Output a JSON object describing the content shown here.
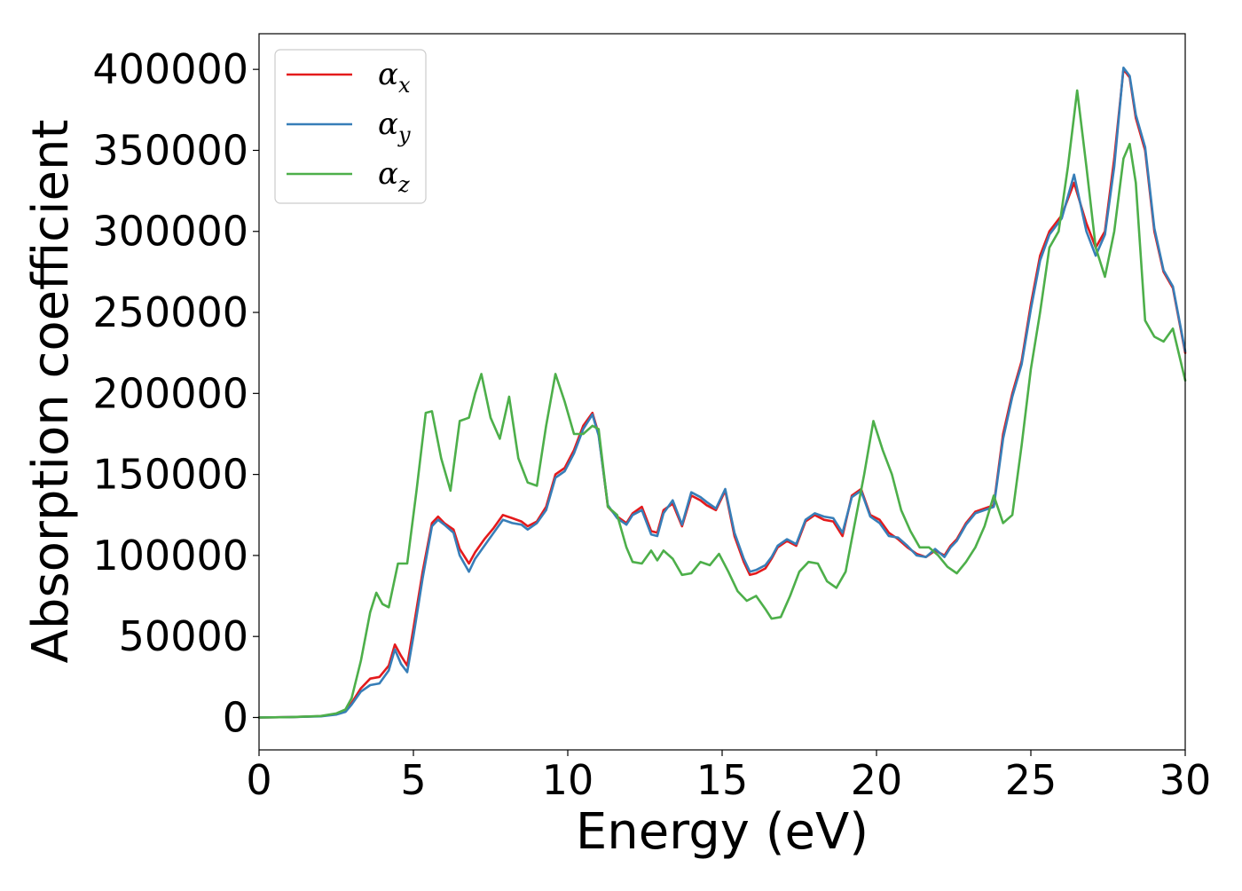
{
  "chart_data": {
    "type": "line",
    "title": "",
    "xlabel": "Energy (eV)",
    "ylabel": "Absorption coefficient",
    "xlim": [
      0,
      30
    ],
    "ylim": [
      -20000,
      422000
    ],
    "xticks": [
      0,
      5,
      10,
      15,
      20,
      25,
      30
    ],
    "xtick_labels": [
      "0",
      "5",
      "10",
      "15",
      "20",
      "25",
      "30"
    ],
    "yticks": [
      0,
      50000,
      100000,
      150000,
      200000,
      250000,
      300000,
      350000,
      400000
    ],
    "ytick_labels": [
      "0",
      "50000",
      "100000",
      "150000",
      "200000",
      "250000",
      "300000",
      "350000",
      "400000"
    ],
    "grid": false,
    "legend_position": "top-left",
    "series": [
      {
        "name": "αx",
        "label_base": "α",
        "label_sub": "x",
        "color": "#e41a1c",
        "x": [
          0,
          1,
          2,
          2.5,
          2.8,
          3.0,
          3.3,
          3.6,
          3.9,
          4.2,
          4.4,
          4.6,
          4.8,
          5.0,
          5.3,
          5.6,
          5.8,
          6.0,
          6.3,
          6.5,
          6.8,
          7.0,
          7.3,
          7.6,
          7.9,
          8.2,
          8.5,
          8.7,
          9.0,
          9.3,
          9.6,
          9.9,
          10.2,
          10.5,
          10.8,
          11.0,
          11.3,
          11.6,
          11.9,
          12.1,
          12.4,
          12.7,
          12.9,
          13.1,
          13.4,
          13.7,
          14.0,
          14.3,
          14.5,
          14.8,
          15.1,
          15.4,
          15.7,
          15.9,
          16.1,
          16.4,
          16.6,
          16.8,
          17.1,
          17.4,
          17.7,
          18.0,
          18.3,
          18.6,
          18.9,
          19.2,
          19.5,
          19.8,
          20.1,
          20.4,
          20.7,
          21.0,
          21.3,
          21.6,
          21.9,
          22.2,
          22.4,
          22.6,
          22.9,
          23.2,
          23.5,
          23.8,
          24.1,
          24.4,
          24.7,
          25.0,
          25.3,
          25.6,
          26.0,
          26.4,
          26.8,
          27.1,
          27.4,
          27.7,
          28.0,
          28.2,
          28.4,
          28.7,
          29.0,
          29.3,
          29.6,
          30.0
        ],
        "y": [
          0,
          200,
          800,
          2000,
          4000,
          9000,
          18000,
          24000,
          25000,
          32000,
          45000,
          38000,
          32000,
          55000,
          90000,
          120000,
          124000,
          120000,
          116000,
          104000,
          95000,
          102000,
          110000,
          117000,
          125000,
          123000,
          121000,
          118000,
          121000,
          130000,
          150000,
          154000,
          165000,
          180000,
          188000,
          175000,
          130000,
          124000,
          120000,
          126000,
          130000,
          115000,
          114000,
          128000,
          132000,
          118000,
          137000,
          134000,
          131000,
          128000,
          140000,
          112000,
          96000,
          88000,
          89000,
          92000,
          98000,
          105000,
          109000,
          106000,
          121000,
          125000,
          122000,
          121000,
          112000,
          137000,
          141000,
          125000,
          122000,
          114000,
          110000,
          105000,
          101000,
          99000,
          103000,
          100000,
          106000,
          110000,
          120000,
          127000,
          129000,
          131000,
          175000,
          200000,
          220000,
          255000,
          285000,
          300000,
          310000,
          330000,
          305000,
          290000,
          300000,
          345000,
          400000,
          395000,
          370000,
          350000,
          300000,
          275000,
          265000,
          225000
        ]
      },
      {
        "name": "αy",
        "label_base": "α",
        "label_sub": "y",
        "color": "#377eb8",
        "x": [
          0,
          1,
          2,
          2.5,
          2.8,
          3.0,
          3.3,
          3.6,
          3.9,
          4.2,
          4.4,
          4.6,
          4.8,
          5.0,
          5.3,
          5.6,
          5.8,
          6.0,
          6.3,
          6.5,
          6.8,
          7.0,
          7.3,
          7.6,
          7.9,
          8.2,
          8.5,
          8.7,
          9.0,
          9.3,
          9.6,
          9.9,
          10.2,
          10.5,
          10.8,
          11.0,
          11.3,
          11.6,
          11.9,
          12.1,
          12.4,
          12.7,
          12.9,
          13.1,
          13.4,
          13.7,
          14.0,
          14.3,
          14.5,
          14.8,
          15.1,
          15.4,
          15.7,
          15.9,
          16.1,
          16.4,
          16.6,
          16.8,
          17.1,
          17.4,
          17.7,
          18.0,
          18.3,
          18.6,
          18.9,
          19.2,
          19.5,
          19.8,
          20.1,
          20.4,
          20.7,
          21.0,
          21.3,
          21.6,
          21.9,
          22.2,
          22.4,
          22.6,
          22.9,
          23.2,
          23.5,
          23.8,
          24.1,
          24.4,
          24.7,
          25.0,
          25.3,
          25.6,
          26.0,
          26.4,
          26.8,
          27.1,
          27.4,
          27.7,
          28.0,
          28.2,
          28.4,
          28.7,
          29.0,
          29.3,
          29.6,
          30.0
        ],
        "y": [
          0,
          200,
          700,
          1800,
          3500,
          8000,
          16000,
          20000,
          21000,
          29000,
          42000,
          33000,
          28000,
          50000,
          86000,
          118000,
          122000,
          119000,
          114000,
          100000,
          90000,
          98000,
          106000,
          114000,
          122000,
          120000,
          119000,
          116000,
          120000,
          128000,
          148000,
          152000,
          163000,
          178000,
          187000,
          174000,
          131000,
          123000,
          119000,
          125000,
          128000,
          113000,
          112000,
          126000,
          134000,
          119000,
          139000,
          136000,
          133000,
          129000,
          141000,
          114000,
          98000,
          90000,
          91000,
          94000,
          99000,
          106000,
          110000,
          107000,
          122000,
          126000,
          124000,
          123000,
          114000,
          136000,
          140000,
          124000,
          120000,
          112000,
          111000,
          106000,
          100000,
          99000,
          104000,
          99000,
          105000,
          109000,
          119000,
          126000,
          128000,
          130000,
          172000,
          198000,
          218000,
          252000,
          282000,
          298000,
          308000,
          335000,
          300000,
          285000,
          298000,
          340000,
          401000,
          396000,
          372000,
          352000,
          302000,
          276000,
          266000,
          226000
        ]
      },
      {
        "name": "αz",
        "label_base": "α",
        "label_sub": "z",
        "color": "#4daf4a",
        "x": [
          0,
          1,
          2,
          2.5,
          2.8,
          3.0,
          3.3,
          3.6,
          3.8,
          4.0,
          4.2,
          4.5,
          4.8,
          5.1,
          5.4,
          5.6,
          5.9,
          6.2,
          6.5,
          6.8,
          7.0,
          7.2,
          7.5,
          7.8,
          8.1,
          8.4,
          8.7,
          9.0,
          9.3,
          9.6,
          9.9,
          10.2,
          10.5,
          10.8,
          11.0,
          11.3,
          11.6,
          11.9,
          12.1,
          12.4,
          12.7,
          12.9,
          13.1,
          13.4,
          13.7,
          14.0,
          14.3,
          14.6,
          14.9,
          15.2,
          15.5,
          15.8,
          16.1,
          16.4,
          16.6,
          16.9,
          17.2,
          17.5,
          17.8,
          18.1,
          18.4,
          18.7,
          19.0,
          19.3,
          19.6,
          19.9,
          20.2,
          20.5,
          20.8,
          21.1,
          21.4,
          21.7,
          22.0,
          22.3,
          22.6,
          22.9,
          23.2,
          23.5,
          23.8,
          24.1,
          24.4,
          24.7,
          25.0,
          25.3,
          25.6,
          25.9,
          26.2,
          26.5,
          26.8,
          27.1,
          27.4,
          27.7,
          28.0,
          28.2,
          28.4,
          28.7,
          29.0,
          29.3,
          29.6,
          30.0
        ],
        "y": [
          0,
          200,
          900,
          2500,
          5000,
          12000,
          35000,
          65000,
          77000,
          70000,
          68000,
          95000,
          95000,
          140000,
          188000,
          189000,
          160000,
          140000,
          183000,
          185000,
          200000,
          212000,
          185000,
          172000,
          198000,
          160000,
          145000,
          143000,
          180000,
          212000,
          195000,
          175000,
          175000,
          180000,
          178000,
          130000,
          125000,
          105000,
          96000,
          95000,
          103000,
          97000,
          103000,
          98000,
          88000,
          89000,
          96000,
          94000,
          101000,
          90000,
          78000,
          72000,
          75000,
          67000,
          61000,
          62000,
          75000,
          90000,
          96000,
          95000,
          84000,
          80000,
          90000,
          120000,
          150000,
          183000,
          165000,
          150000,
          128000,
          115000,
          105000,
          105000,
          100000,
          93000,
          89000,
          96000,
          105000,
          118000,
          137000,
          120000,
          125000,
          168000,
          215000,
          250000,
          290000,
          300000,
          340000,
          387000,
          340000,
          290000,
          272000,
          300000,
          345000,
          354000,
          330000,
          245000,
          235000,
          232000,
          240000,
          208000
        ]
      }
    ]
  }
}
